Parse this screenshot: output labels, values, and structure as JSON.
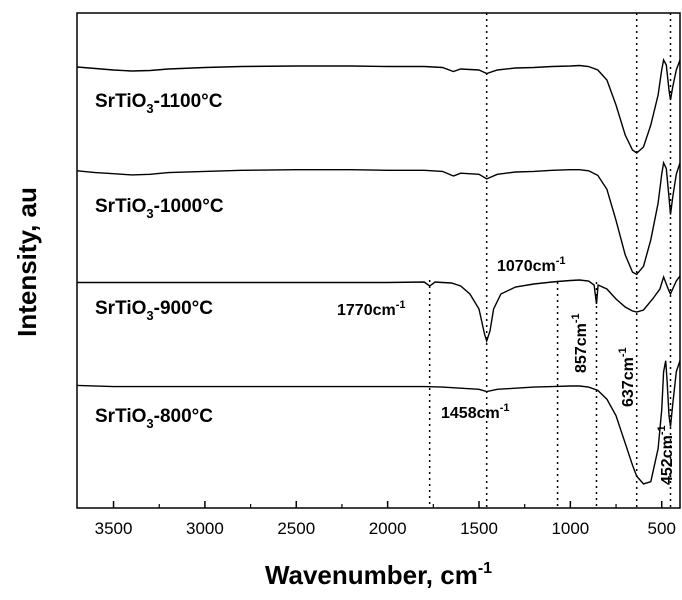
{
  "chart_data": {
    "type": "line",
    "xlabel": "Wavenumber, cm",
    "xlabel_sup": "-1",
    "ylabel": "Intensity, au",
    "xlim": [
      3700,
      400
    ],
    "x_reversed": true,
    "x_ticks": [
      3500,
      3000,
      2500,
      2000,
      1500,
      1000,
      500
    ],
    "y_ticks_shown": false,
    "grid": false,
    "reference_lines": [
      1770,
      1458,
      1070,
      857,
      637,
      452
    ],
    "series": [
      {
        "name": "SrTiO3-1100°C",
        "label_main": "SrTiO",
        "label_sub": "3",
        "label_tail": "-1100°C",
        "offset": 3.0,
        "points": [
          [
            3700,
            0.98
          ],
          [
            3600,
            0.965
          ],
          [
            3500,
            0.95
          ],
          [
            3400,
            0.94
          ],
          [
            3300,
            0.945
          ],
          [
            3200,
            0.96
          ],
          [
            3000,
            0.975
          ],
          [
            2800,
            0.985
          ],
          [
            2500,
            0.99
          ],
          [
            2200,
            0.99
          ],
          [
            2000,
            0.985
          ],
          [
            1800,
            0.985
          ],
          [
            1700,
            0.975
          ],
          [
            1640,
            0.935
          ],
          [
            1600,
            0.96
          ],
          [
            1500,
            0.95
          ],
          [
            1458,
            0.915
          ],
          [
            1400,
            0.95
          ],
          [
            1300,
            0.97
          ],
          [
            1200,
            0.975
          ],
          [
            1100,
            0.985
          ],
          [
            1000,
            0.99
          ],
          [
            950,
            0.995
          ],
          [
            900,
            0.985
          ],
          [
            850,
            0.95
          ],
          [
            800,
            0.85
          ],
          [
            750,
            0.6
          ],
          [
            700,
            0.3
          ],
          [
            660,
            0.15
          ],
          [
            637,
            0.12
          ],
          [
            600,
            0.18
          ],
          [
            560,
            0.4
          ],
          [
            520,
            0.7
          ],
          [
            500,
            0.95
          ],
          [
            490,
            1.05
          ],
          [
            475,
            1.0
          ],
          [
            460,
            0.75
          ],
          [
            452,
            0.65
          ],
          [
            440,
            0.78
          ],
          [
            420,
            0.95
          ],
          [
            400,
            1.05
          ]
        ]
      },
      {
        "name": "SrTiO3-1000°C",
        "label_main": "SrTiO",
        "label_sub": "3",
        "label_tail": "-1000°C",
        "offset": 2.0,
        "points": [
          [
            3700,
            0.98
          ],
          [
            3600,
            0.965
          ],
          [
            3500,
            0.955
          ],
          [
            3400,
            0.945
          ],
          [
            3300,
            0.95
          ],
          [
            3200,
            0.965
          ],
          [
            3000,
            0.975
          ],
          [
            2800,
            0.985
          ],
          [
            2500,
            0.99
          ],
          [
            2200,
            0.99
          ],
          [
            2000,
            0.985
          ],
          [
            1800,
            0.985
          ],
          [
            1700,
            0.975
          ],
          [
            1640,
            0.935
          ],
          [
            1600,
            0.96
          ],
          [
            1500,
            0.95
          ],
          [
            1458,
            0.91
          ],
          [
            1400,
            0.95
          ],
          [
            1300,
            0.97
          ],
          [
            1200,
            0.975
          ],
          [
            1100,
            0.985
          ],
          [
            1000,
            0.99
          ],
          [
            950,
            0.99
          ],
          [
            900,
            0.98
          ],
          [
            850,
            0.94
          ],
          [
            800,
            0.82
          ],
          [
            750,
            0.55
          ],
          [
            700,
            0.25
          ],
          [
            660,
            0.1
          ],
          [
            637,
            0.08
          ],
          [
            600,
            0.15
          ],
          [
            560,
            0.38
          ],
          [
            520,
            0.7
          ],
          [
            500,
            0.95
          ],
          [
            490,
            1.05
          ],
          [
            475,
            1.0
          ],
          [
            460,
            0.75
          ],
          [
            452,
            0.6
          ],
          [
            440,
            0.75
          ],
          [
            420,
            0.95
          ],
          [
            400,
            1.05
          ]
        ]
      },
      {
        "name": "SrTiO3-900°C",
        "label_main": "SrTiO",
        "label_sub": "3",
        "label_tail": "-900°C",
        "offset": 1.0,
        "points": [
          [
            3700,
            0.965
          ],
          [
            3500,
            0.965
          ],
          [
            3300,
            0.965
          ],
          [
            3000,
            0.965
          ],
          [
            2500,
            0.965
          ],
          [
            2000,
            0.965
          ],
          [
            1800,
            0.97
          ],
          [
            1770,
            0.93
          ],
          [
            1740,
            0.97
          ],
          [
            1700,
            0.965
          ],
          [
            1650,
            0.96
          ],
          [
            1600,
            0.93
          ],
          [
            1550,
            0.85
          ],
          [
            1500,
            0.7
          ],
          [
            1470,
            0.45
          ],
          [
            1458,
            0.38
          ],
          [
            1440,
            0.48
          ],
          [
            1420,
            0.7
          ],
          [
            1380,
            0.85
          ],
          [
            1300,
            0.92
          ],
          [
            1200,
            0.95
          ],
          [
            1100,
            0.97
          ],
          [
            1070,
            0.975
          ],
          [
            1000,
            0.985
          ],
          [
            950,
            0.99
          ],
          [
            900,
            0.98
          ],
          [
            870,
            0.94
          ],
          [
            857,
            0.75
          ],
          [
            848,
            0.94
          ],
          [
            800,
            0.9
          ],
          [
            750,
            0.8
          ],
          [
            700,
            0.72
          ],
          [
            660,
            0.68
          ],
          [
            637,
            0.67
          ],
          [
            600,
            0.69
          ],
          [
            550,
            0.8
          ],
          [
            510,
            0.9
          ],
          [
            490,
            1.02
          ],
          [
            475,
            0.95
          ],
          [
            460,
            0.88
          ],
          [
            452,
            0.85
          ],
          [
            440,
            0.9
          ],
          [
            420,
            0.98
          ],
          [
            400,
            1.03
          ]
        ]
      },
      {
        "name": "SrTiO3-800°C",
        "label_main": "SrTiO",
        "label_sub": "3",
        "label_tail": "-800°C",
        "offset": 0.0,
        "points": [
          [
            3700,
            0.975
          ],
          [
            3500,
            0.965
          ],
          [
            3300,
            0.965
          ],
          [
            3000,
            0.965
          ],
          [
            2500,
            0.965
          ],
          [
            2000,
            0.965
          ],
          [
            1800,
            0.965
          ],
          [
            1700,
            0.96
          ],
          [
            1600,
            0.95
          ],
          [
            1500,
            0.94
          ],
          [
            1458,
            0.92
          ],
          [
            1400,
            0.94
          ],
          [
            1300,
            0.95
          ],
          [
            1200,
            0.96
          ],
          [
            1100,
            0.965
          ],
          [
            1000,
            0.97
          ],
          [
            950,
            0.97
          ],
          [
            900,
            0.96
          ],
          [
            850,
            0.93
          ],
          [
            800,
            0.85
          ],
          [
            750,
            0.7
          ],
          [
            700,
            0.45
          ],
          [
            660,
            0.25
          ],
          [
            637,
            0.15
          ],
          [
            600,
            0.08
          ],
          [
            560,
            0.1
          ],
          [
            520,
            0.4
          ],
          [
            500,
            0.75
          ],
          [
            490,
            1.1
          ],
          [
            478,
            1.2
          ],
          [
            470,
            1.0
          ],
          [
            460,
            0.7
          ],
          [
            452,
            0.6
          ],
          [
            440,
            0.8
          ],
          [
            420,
            1.1
          ],
          [
            400,
            1.2
          ]
        ]
      }
    ],
    "annotations": [
      {
        "id": "a1770",
        "main": "1770cm",
        "sup": "-1",
        "x": 1770
      },
      {
        "id": "a1458",
        "main": "1458cm",
        "sup": "-1",
        "x": 1458
      },
      {
        "id": "a1070",
        "main": "1070cm",
        "sup": "-1",
        "x": 1070
      },
      {
        "id": "a857",
        "main": "857cm",
        "sup": "-1",
        "x": 857,
        "rotated": true
      },
      {
        "id": "a637",
        "main": "637cm",
        "sup": "-1",
        "x": 637,
        "rotated": true
      },
      {
        "id": "a452",
        "main": "452cm",
        "sup": "-1",
        "x": 452,
        "rotated": true
      }
    ]
  }
}
